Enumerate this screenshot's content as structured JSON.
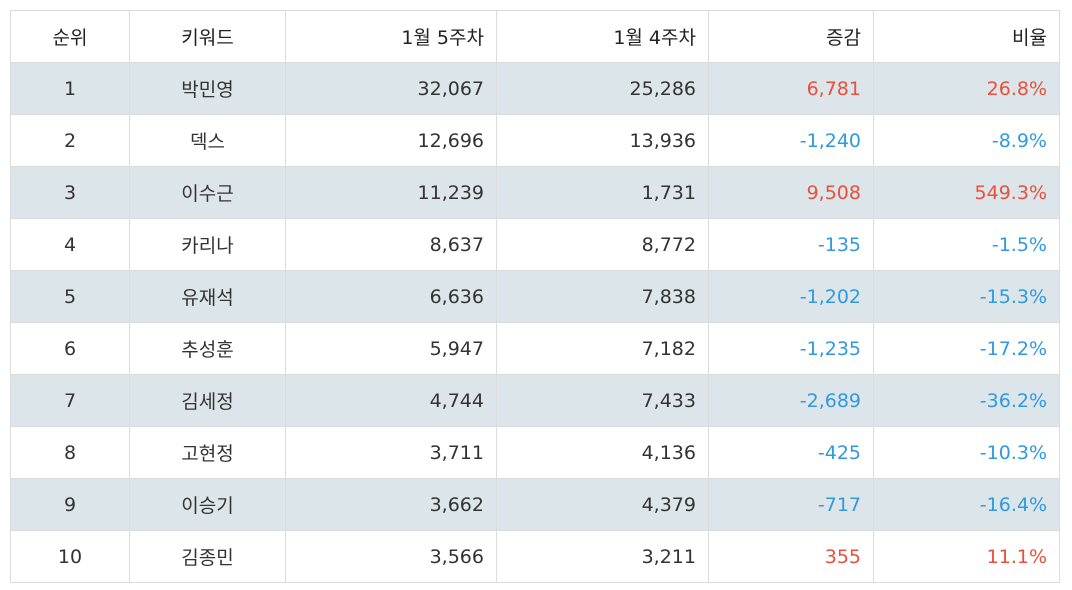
{
  "table": {
    "headers": {
      "rank": "순위",
      "keyword": "키워드",
      "week5": "1월 5주차",
      "week4": "1월 4주차",
      "change": "증감",
      "ratio": "비율"
    },
    "colors": {
      "increase": "#e8503d",
      "decrease": "#2f9ae0",
      "stripe": "#dce5e9"
    },
    "rows": [
      {
        "rank": "1",
        "keyword": "박민영",
        "week5": "32,067",
        "week4": "25,286",
        "change": "6,781",
        "ratio": "26.8%",
        "trend": "up"
      },
      {
        "rank": "2",
        "keyword": "덱스",
        "week5": "12,696",
        "week4": "13,936",
        "change": "-1,240",
        "ratio": "-8.9%",
        "trend": "down"
      },
      {
        "rank": "3",
        "keyword": "이수근",
        "week5": "11,239",
        "week4": "1,731",
        "change": "9,508",
        "ratio": "549.3%",
        "trend": "up"
      },
      {
        "rank": "4",
        "keyword": "카리나",
        "week5": "8,637",
        "week4": "8,772",
        "change": "-135",
        "ratio": "-1.5%",
        "trend": "down"
      },
      {
        "rank": "5",
        "keyword": "유재석",
        "week5": "6,636",
        "week4": "7,838",
        "change": "-1,202",
        "ratio": "-15.3%",
        "trend": "down"
      },
      {
        "rank": "6",
        "keyword": "추성훈",
        "week5": "5,947",
        "week4": "7,182",
        "change": "-1,235",
        "ratio": "-17.2%",
        "trend": "down"
      },
      {
        "rank": "7",
        "keyword": "김세정",
        "week5": "4,744",
        "week4": "7,433",
        "change": "-2,689",
        "ratio": "-36.2%",
        "trend": "down"
      },
      {
        "rank": "8",
        "keyword": "고현정",
        "week5": "3,711",
        "week4": "4,136",
        "change": "-425",
        "ratio": "-10.3%",
        "trend": "down"
      },
      {
        "rank": "9",
        "keyword": "이승기",
        "week5": "3,662",
        "week4": "4,379",
        "change": "-717",
        "ratio": "-16.4%",
        "trend": "down"
      },
      {
        "rank": "10",
        "keyword": "김종민",
        "week5": "3,566",
        "week4": "3,211",
        "change": "355",
        "ratio": "11.1%",
        "trend": "up"
      }
    ]
  }
}
